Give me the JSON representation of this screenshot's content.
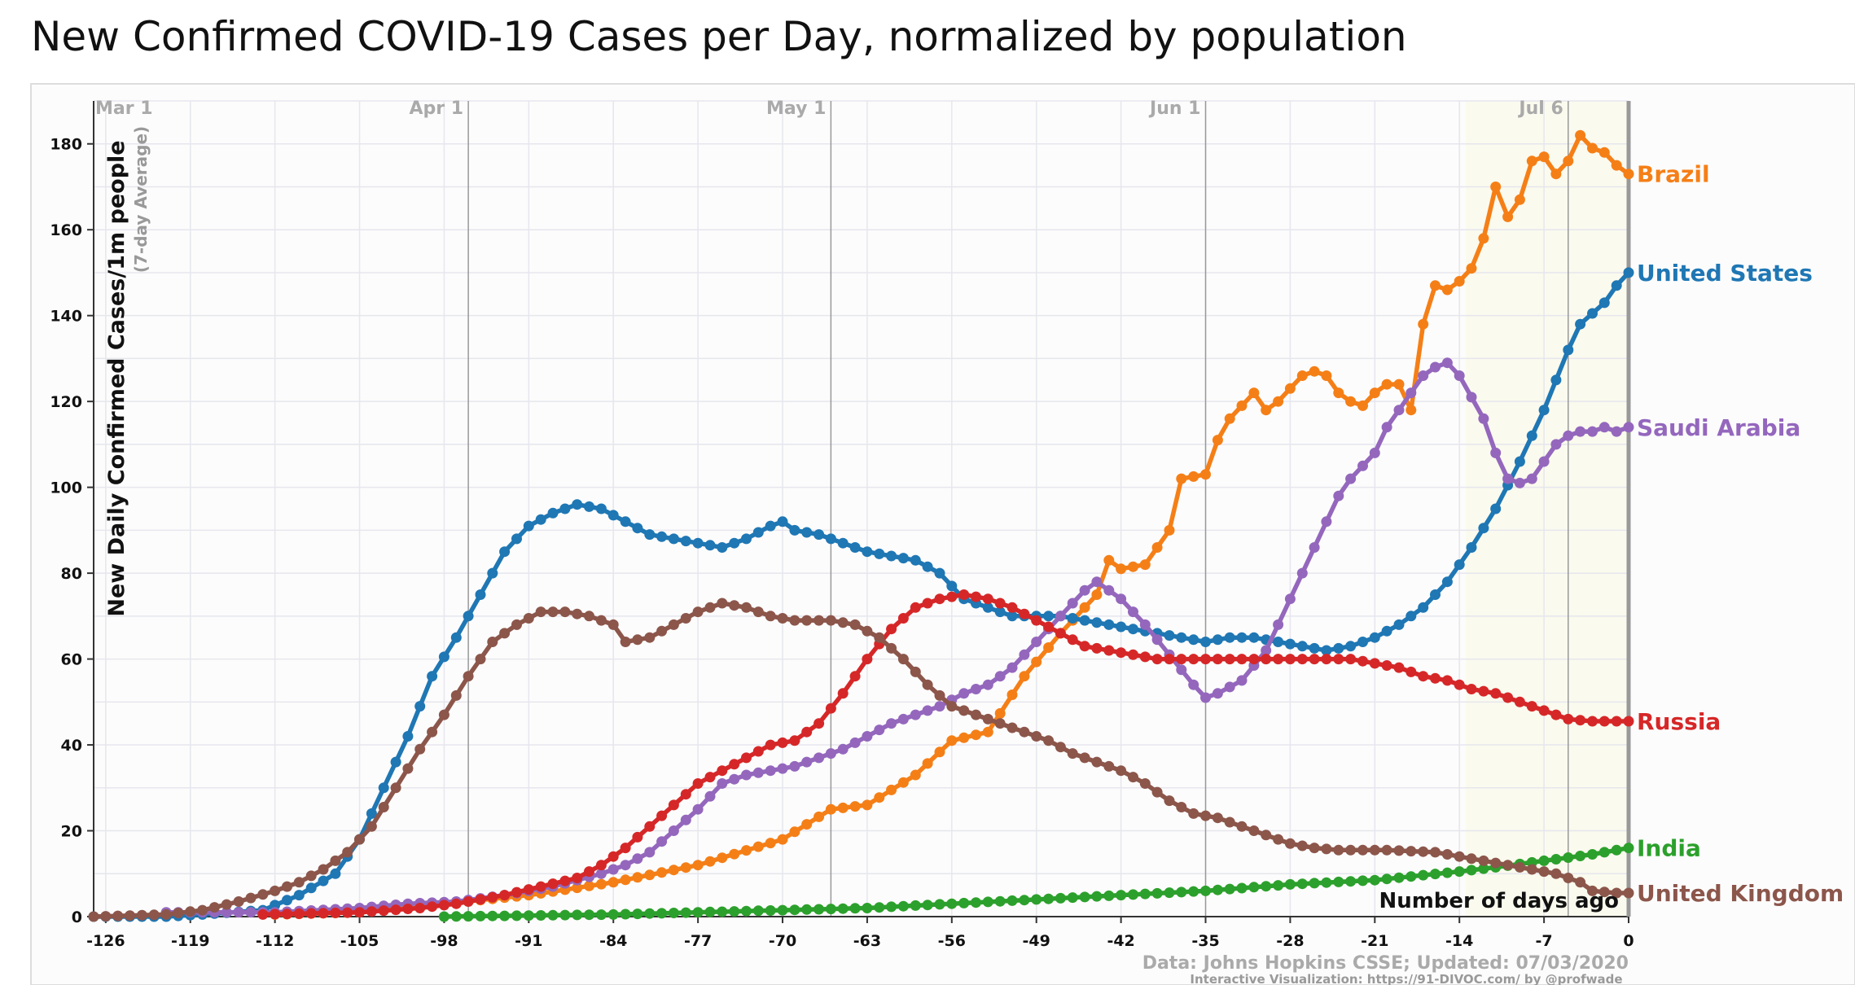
{
  "chart_data": {
    "type": "line",
    "title": "New Confirmed COVID-19 Cases per Day, normalized by population",
    "ylabel": "New Daily Confirmed Cases/1m people",
    "ylabel_note": "(7-day Average)",
    "xlabel": "Number of days ago",
    "xlim": [
      -127,
      0
    ],
    "ylim": [
      0,
      190
    ],
    "x_ticks": [
      -126,
      -119,
      -112,
      -105,
      -98,
      -91,
      -84,
      -77,
      -70,
      -63,
      -56,
      -49,
      -42,
      -35,
      -28,
      -21,
      -14,
      -7,
      0
    ],
    "y_ticks": [
      0,
      20,
      40,
      60,
      80,
      100,
      120,
      140,
      160,
      180
    ],
    "x_tick_labels": [
      "-126",
      "-119",
      "-112",
      "-105",
      "-98",
      "-91",
      "-84",
      "-77",
      "-70",
      "-63",
      "-56",
      "-49",
      "-42",
      "-35",
      "-28",
      "-21",
      "-14",
      "-7",
      "0"
    ],
    "y_tick_labels": [
      "0",
      "20",
      "40",
      "60",
      "80",
      "100",
      "120",
      "140",
      "160",
      "180"
    ],
    "month_markers": [
      {
        "label": "Mar 1",
        "x": -127
      },
      {
        "label": "Apr 1",
        "x": -96
      },
      {
        "label": "May 1",
        "x": -66
      },
      {
        "label": "Jun 1",
        "x": -35
      },
      {
        "label": "Jul 6",
        "x": -5
      }
    ],
    "grid": true,
    "legend": "labels at right end of each line",
    "series": [
      {
        "name": "Brazil",
        "color": "#f57f17",
        "start": -112,
        "points": [
          [
            -112,
            0.5
          ],
          [
            -105,
            1
          ],
          [
            -98,
            3
          ],
          [
            -91,
            5
          ],
          [
            -84,
            8
          ],
          [
            -77,
            12
          ],
          [
            -70,
            18
          ],
          [
            -66,
            25
          ],
          [
            -63,
            26
          ],
          [
            -59,
            33
          ],
          [
            -56,
            41
          ],
          [
            -53,
            43
          ],
          [
            -50,
            56
          ],
          [
            -47,
            66
          ],
          [
            -44,
            75
          ],
          [
            -43,
            83
          ],
          [
            -42,
            81
          ],
          [
            -40,
            82
          ],
          [
            -38,
            90
          ],
          [
            -37,
            102
          ],
          [
            -35,
            103
          ],
          [
            -34,
            111
          ],
          [
            -33,
            116
          ],
          [
            -32,
            119
          ],
          [
            -31,
            122
          ],
          [
            -30,
            118
          ],
          [
            -29,
            120
          ],
          [
            -28,
            123
          ],
          [
            -27,
            126
          ],
          [
            -26,
            127
          ],
          [
            -25,
            126
          ],
          [
            -24,
            122
          ],
          [
            -23,
            120
          ],
          [
            -22,
            119
          ],
          [
            -21,
            122
          ],
          [
            -20,
            124
          ],
          [
            -19,
            124
          ],
          [
            -18,
            118
          ],
          [
            -17,
            138
          ],
          [
            -16,
            147
          ],
          [
            -15,
            146
          ],
          [
            -14,
            148
          ],
          [
            -13,
            151
          ],
          [
            -12,
            158
          ],
          [
            -11,
            170
          ],
          [
            -10,
            163
          ],
          [
            -9,
            167
          ],
          [
            -8,
            176
          ],
          [
            -7,
            177
          ],
          [
            -6,
            173
          ],
          [
            -5,
            176
          ],
          [
            -4,
            182
          ],
          [
            -3,
            179
          ],
          [
            -2,
            178
          ],
          [
            -1,
            175
          ],
          [
            0,
            173
          ]
        ]
      },
      {
        "name": "United States",
        "color": "#1f77b4",
        "start": -127,
        "points": [
          [
            -127,
            0
          ],
          [
            -121,
            0
          ],
          [
            -118,
            0.5
          ],
          [
            -113,
            1.5
          ],
          [
            -110,
            5
          ],
          [
            -107,
            10
          ],
          [
            -105,
            18
          ],
          [
            -103,
            30
          ],
          [
            -101,
            42
          ],
          [
            -99,
            56
          ],
          [
            -97,
            65
          ],
          [
            -95,
            75
          ],
          [
            -93,
            85
          ],
          [
            -91,
            91
          ],
          [
            -89,
            94
          ],
          [
            -87,
            96
          ],
          [
            -85,
            95
          ],
          [
            -83,
            92
          ],
          [
            -81,
            89
          ],
          [
            -79,
            88
          ],
          [
            -77,
            87
          ],
          [
            -75,
            86
          ],
          [
            -73,
            88
          ],
          [
            -71,
            91
          ],
          [
            -70,
            92
          ],
          [
            -69,
            90
          ],
          [
            -67,
            89
          ],
          [
            -65,
            87
          ],
          [
            -63,
            85
          ],
          [
            -61,
            84
          ],
          [
            -59,
            83
          ],
          [
            -57,
            80
          ],
          [
            -55,
            74
          ],
          [
            -53,
            72
          ],
          [
            -51,
            70
          ],
          [
            -49,
            70
          ],
          [
            -47,
            70
          ],
          [
            -45,
            69
          ],
          [
            -43,
            68
          ],
          [
            -41,
            67
          ],
          [
            -39,
            66
          ],
          [
            -37,
            65
          ],
          [
            -35,
            64
          ],
          [
            -33,
            65
          ],
          [
            -31,
            65
          ],
          [
            -29,
            64
          ],
          [
            -27,
            63
          ],
          [
            -25,
            62
          ],
          [
            -23,
            63
          ],
          [
            -21,
            65
          ],
          [
            -19,
            68
          ],
          [
            -17,
            72
          ],
          [
            -15,
            78
          ],
          [
            -13,
            86
          ],
          [
            -11,
            95
          ],
          [
            -9,
            106
          ],
          [
            -7,
            118
          ],
          [
            -5,
            132
          ],
          [
            -4,
            138
          ],
          [
            -2,
            143
          ],
          [
            -1,
            147
          ],
          [
            0,
            150
          ]
        ]
      },
      {
        "name": "Saudi Arabia",
        "color": "#9467bd",
        "start": -121,
        "points": [
          [
            -121,
            1
          ],
          [
            -112,
            1
          ],
          [
            -105,
            2
          ],
          [
            -101,
            3
          ],
          [
            -97,
            3.5
          ],
          [
            -93,
            5
          ],
          [
            -89,
            7
          ],
          [
            -85,
            10
          ],
          [
            -83,
            12
          ],
          [
            -81,
            15
          ],
          [
            -79,
            20
          ],
          [
            -77,
            25
          ],
          [
            -75,
            31
          ],
          [
            -73,
            33
          ],
          [
            -71,
            34
          ],
          [
            -69,
            35
          ],
          [
            -67,
            37
          ],
          [
            -65,
            39
          ],
          [
            -63,
            42
          ],
          [
            -61,
            45
          ],
          [
            -59,
            47
          ],
          [
            -57,
            49
          ],
          [
            -55,
            52
          ],
          [
            -53,
            54
          ],
          [
            -51,
            58
          ],
          [
            -49,
            64
          ],
          [
            -47,
            70
          ],
          [
            -45,
            76
          ],
          [
            -44,
            78
          ],
          [
            -42,
            74
          ],
          [
            -40,
            68
          ],
          [
            -38,
            61
          ],
          [
            -36,
            54
          ],
          [
            -35,
            51
          ],
          [
            -34,
            52
          ],
          [
            -32,
            55
          ],
          [
            -30,
            62
          ],
          [
            -29,
            68
          ],
          [
            -28,
            74
          ],
          [
            -26,
            86
          ],
          [
            -24,
            98
          ],
          [
            -23,
            102
          ],
          [
            -21,
            108
          ],
          [
            -20,
            114
          ],
          [
            -18,
            122
          ],
          [
            -17,
            126
          ],
          [
            -16,
            128
          ],
          [
            -15,
            129
          ],
          [
            -14,
            126
          ],
          [
            -13,
            121
          ],
          [
            -12,
            116
          ],
          [
            -11,
            108
          ],
          [
            -10,
            102
          ],
          [
            -9,
            101
          ],
          [
            -8,
            102
          ],
          [
            -7,
            106
          ],
          [
            -6,
            110
          ],
          [
            -5,
            112
          ],
          [
            -4,
            113
          ],
          [
            -3,
            113
          ],
          [
            -2,
            114
          ],
          [
            -1,
            113
          ],
          [
            0,
            114
          ]
        ]
      },
      {
        "name": "Russia",
        "color": "#d62728",
        "start": -113,
        "points": [
          [
            -113,
            0.5
          ],
          [
            -105,
            1
          ],
          [
            -100,
            2
          ],
          [
            -97,
            3
          ],
          [
            -93,
            5
          ],
          [
            -90,
            7
          ],
          [
            -87,
            9
          ],
          [
            -85,
            12
          ],
          [
            -83,
            16
          ],
          [
            -81,
            21
          ],
          [
            -79,
            26
          ],
          [
            -77,
            31
          ],
          [
            -75,
            34
          ],
          [
            -73,
            37
          ],
          [
            -71,
            40
          ],
          [
            -69,
            41
          ],
          [
            -67,
            45
          ],
          [
            -65,
            52
          ],
          [
            -63,
            60
          ],
          [
            -61,
            67
          ],
          [
            -59,
            72
          ],
          [
            -57,
            74
          ],
          [
            -55,
            75
          ],
          [
            -53,
            74
          ],
          [
            -51,
            72
          ],
          [
            -49,
            69
          ],
          [
            -47,
            66
          ],
          [
            -45,
            63
          ],
          [
            -43,
            62
          ],
          [
            -41,
            61
          ],
          [
            -39,
            60
          ],
          [
            -37,
            60
          ],
          [
            -35,
            60
          ],
          [
            -31,
            60
          ],
          [
            -27,
            60
          ],
          [
            -23,
            60
          ],
          [
            -21,
            59
          ],
          [
            -19,
            58
          ],
          [
            -17,
            56
          ],
          [
            -15,
            55
          ],
          [
            -13,
            53
          ],
          [
            -11,
            52
          ],
          [
            -9,
            50
          ],
          [
            -7,
            48
          ],
          [
            -5,
            46
          ],
          [
            -3,
            45.5
          ],
          [
            0,
            45.5
          ]
        ]
      },
      {
        "name": "India",
        "color": "#2ca02c",
        "start": -98,
        "points": [
          [
            -98,
            0
          ],
          [
            -84,
            0.5
          ],
          [
            -77,
            1
          ],
          [
            -70,
            1.5
          ],
          [
            -63,
            2
          ],
          [
            -56,
            3
          ],
          [
            -49,
            4
          ],
          [
            -42,
            5
          ],
          [
            -35,
            6
          ],
          [
            -28,
            7.5
          ],
          [
            -21,
            8.5
          ],
          [
            -14,
            10.5
          ],
          [
            -11,
            11.5
          ],
          [
            -7,
            13
          ],
          [
            -3,
            14.5
          ],
          [
            0,
            16
          ]
        ]
      },
      {
        "name": "United Kingdom",
        "color": "#8c564b",
        "start": -127,
        "points": [
          [
            -127,
            0
          ],
          [
            -121,
            0.5
          ],
          [
            -118,
            1.5
          ],
          [
            -115,
            3.5
          ],
          [
            -112,
            6
          ],
          [
            -110,
            8
          ],
          [
            -108,
            11
          ],
          [
            -106,
            15
          ],
          [
            -104,
            21
          ],
          [
            -102,
            30
          ],
          [
            -100,
            39
          ],
          [
            -98,
            47
          ],
          [
            -96,
            56
          ],
          [
            -94,
            64
          ],
          [
            -92,
            68
          ],
          [
            -90,
            71
          ],
          [
            -88,
            71
          ],
          [
            -86,
            70
          ],
          [
            -84,
            68
          ],
          [
            -83,
            64
          ],
          [
            -81,
            65
          ],
          [
            -79,
            68
          ],
          [
            -77,
            71
          ],
          [
            -75,
            73
          ],
          [
            -73,
            72
          ],
          [
            -71,
            70
          ],
          [
            -69,
            69
          ],
          [
            -66,
            69
          ],
          [
            -64,
            68
          ],
          [
            -62,
            65
          ],
          [
            -60,
            60
          ],
          [
            -58,
            54
          ],
          [
            -56,
            49
          ],
          [
            -54,
            47
          ],
          [
            -52,
            45
          ],
          [
            -50,
            43
          ],
          [
            -48,
            41
          ],
          [
            -46,
            38
          ],
          [
            -44,
            36
          ],
          [
            -42,
            34
          ],
          [
            -40,
            31
          ],
          [
            -38,
            27
          ],
          [
            -36,
            24
          ],
          [
            -34,
            23
          ],
          [
            -32,
            21
          ],
          [
            -30,
            19
          ],
          [
            -28,
            17
          ],
          [
            -26,
            16
          ],
          [
            -24,
            15.5
          ],
          [
            -20,
            15.5
          ],
          [
            -16,
            15
          ],
          [
            -13,
            13.5
          ],
          [
            -11,
            12.5
          ],
          [
            -9,
            11.5
          ],
          [
            -6,
            10
          ],
          [
            -4,
            8
          ],
          [
            -3,
            6
          ],
          [
            -1,
            5.5
          ],
          [
            0,
            5.5
          ]
        ]
      }
    ]
  },
  "footer": {
    "source": "Data: Johns Hopkins CSSE; Updated: 07/03/2020",
    "credit": "Interactive Visualization: https://91-DIVOC.com/ by @profwade_"
  }
}
